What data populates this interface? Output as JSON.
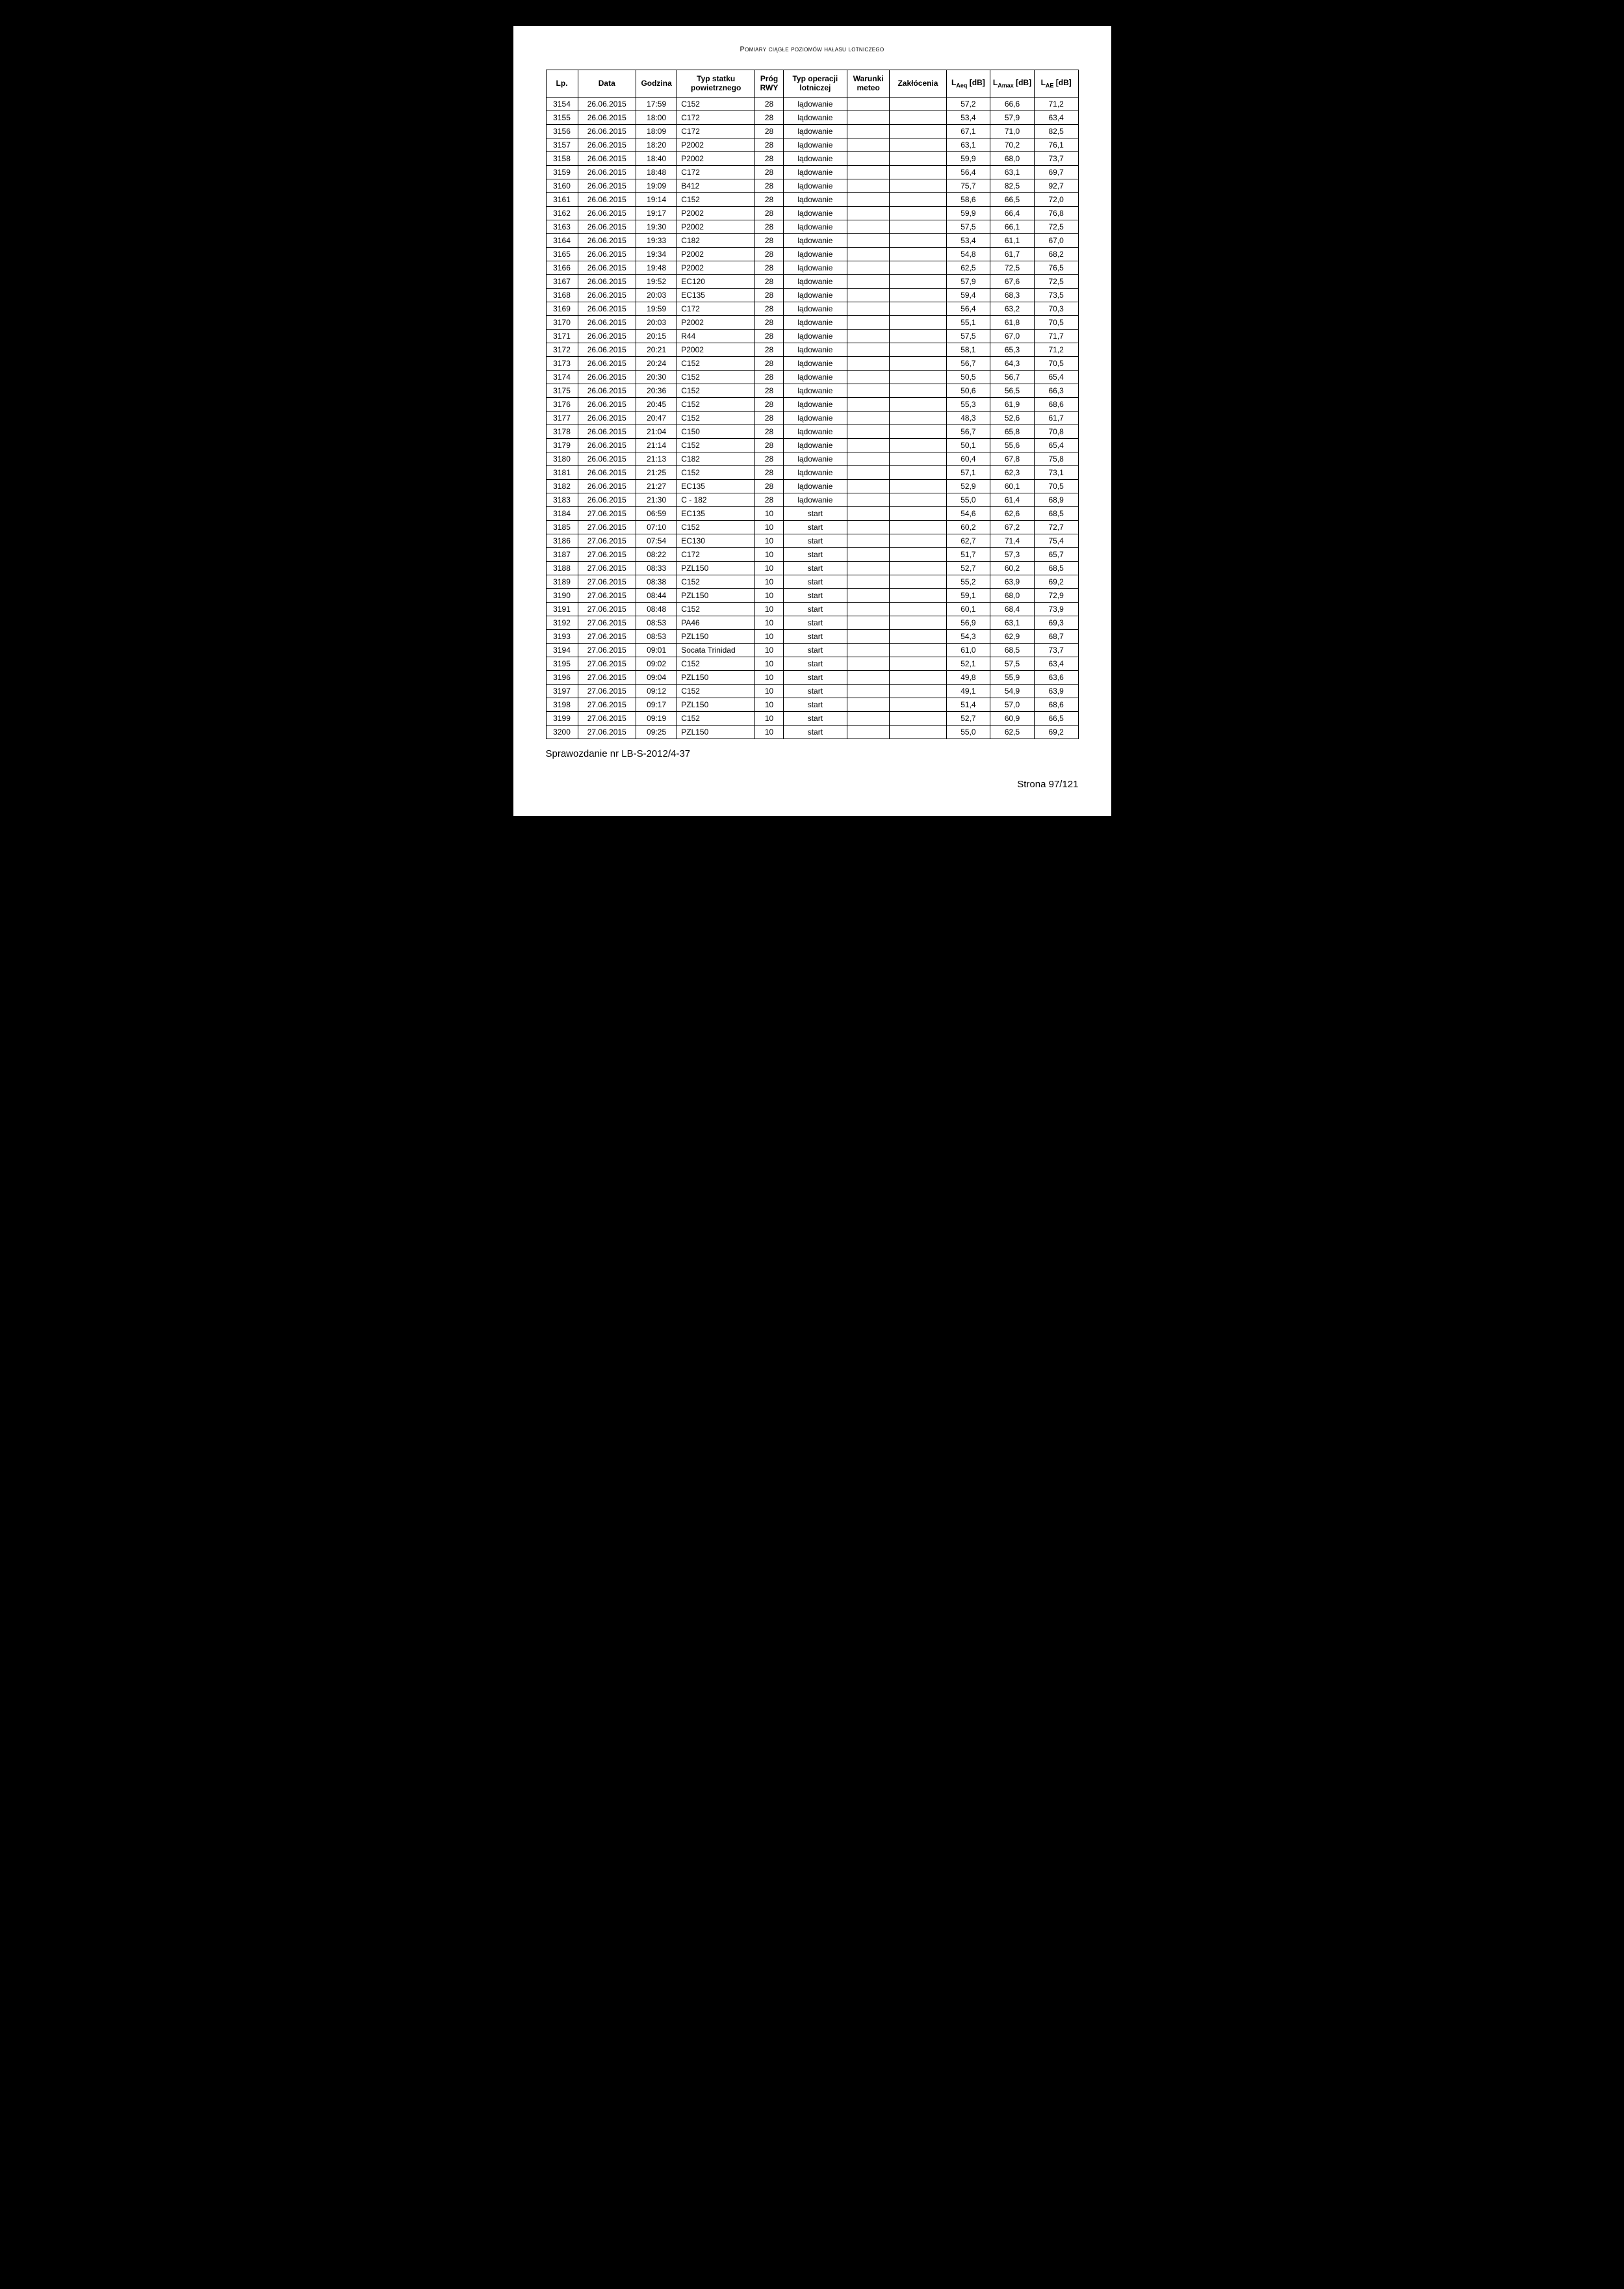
{
  "header_title": "Pomiary ciągłe poziomów hałasu lotniczego",
  "columns": [
    "Lp.",
    "Data",
    "Godzina",
    "Typ statku powietrznego",
    "Próg RWY",
    "Typ operacji lotniczej",
    "Warunki meteo",
    "Zakłócenia",
    "L_Aeq [dB]",
    "L_Amax [dB]",
    "L_AE [dB]"
  ],
  "report_id": "Sprawozdanie nr LB-S-2012/4-37",
  "page_number": "Strona 97/121",
  "rows": [
    [
      "3154",
      "26.06.2015",
      "17:59",
      "C152",
      "28",
      "lądowanie",
      "",
      "",
      "57,2",
      "66,6",
      "71,2"
    ],
    [
      "3155",
      "26.06.2015",
      "18:00",
      "C172",
      "28",
      "lądowanie",
      "",
      "",
      "53,4",
      "57,9",
      "63,4"
    ],
    [
      "3156",
      "26.06.2015",
      "18:09",
      "C172",
      "28",
      "lądowanie",
      "",
      "",
      "67,1",
      "71,0",
      "82,5"
    ],
    [
      "3157",
      "26.06.2015",
      "18:20",
      "P2002",
      "28",
      "lądowanie",
      "",
      "",
      "63,1",
      "70,2",
      "76,1"
    ],
    [
      "3158",
      "26.06.2015",
      "18:40",
      "P2002",
      "28",
      "lądowanie",
      "",
      "",
      "59,9",
      "68,0",
      "73,7"
    ],
    [
      "3159",
      "26.06.2015",
      "18:48",
      "C172",
      "28",
      "lądowanie",
      "",
      "",
      "56,4",
      "63,1",
      "69,7"
    ],
    [
      "3160",
      "26.06.2015",
      "19:09",
      "B412",
      "28",
      "lądowanie",
      "",
      "",
      "75,7",
      "82,5",
      "92,7"
    ],
    [
      "3161",
      "26.06.2015",
      "19:14",
      "C152",
      "28",
      "lądowanie",
      "",
      "",
      "58,6",
      "66,5",
      "72,0"
    ],
    [
      "3162",
      "26.06.2015",
      "19:17",
      "P2002",
      "28",
      "lądowanie",
      "",
      "",
      "59,9",
      "66,4",
      "76,8"
    ],
    [
      "3163",
      "26.06.2015",
      "19:30",
      "P2002",
      "28",
      "lądowanie",
      "",
      "",
      "57,5",
      "66,1",
      "72,5"
    ],
    [
      "3164",
      "26.06.2015",
      "19:33",
      "C182",
      "28",
      "lądowanie",
      "",
      "",
      "53,4",
      "61,1",
      "67,0"
    ],
    [
      "3165",
      "26.06.2015",
      "19:34",
      "P2002",
      "28",
      "lądowanie",
      "",
      "",
      "54,8",
      "61,7",
      "68,2"
    ],
    [
      "3166",
      "26.06.2015",
      "19:48",
      "P2002",
      "28",
      "lądowanie",
      "",
      "",
      "62,5",
      "72,5",
      "76,5"
    ],
    [
      "3167",
      "26.06.2015",
      "19:52",
      "EC120",
      "28",
      "lądowanie",
      "",
      "",
      "57,9",
      "67,6",
      "72,5"
    ],
    [
      "3168",
      "26.06.2015",
      "20:03",
      "EC135",
      "28",
      "lądowanie",
      "",
      "",
      "59,4",
      "68,3",
      "73,5"
    ],
    [
      "3169",
      "26.06.2015",
      "19:59",
      "C172",
      "28",
      "lądowanie",
      "",
      "",
      "56,4",
      "63,2",
      "70,3"
    ],
    [
      "3170",
      "26.06.2015",
      "20:03",
      "P2002",
      "28",
      "lądowanie",
      "",
      "",
      "55,1",
      "61,8",
      "70,5"
    ],
    [
      "3171",
      "26.06.2015",
      "20:15",
      "R44",
      "28",
      "lądowanie",
      "",
      "",
      "57,5",
      "67,0",
      "71,7"
    ],
    [
      "3172",
      "26.06.2015",
      "20:21",
      "P2002",
      "28",
      "lądowanie",
      "",
      "",
      "58,1",
      "65,3",
      "71,2"
    ],
    [
      "3173",
      "26.06.2015",
      "20:24",
      "C152",
      "28",
      "lądowanie",
      "",
      "",
      "56,7",
      "64,3",
      "70,5"
    ],
    [
      "3174",
      "26.06.2015",
      "20:30",
      "C152",
      "28",
      "lądowanie",
      "",
      "",
      "50,5",
      "56,7",
      "65,4"
    ],
    [
      "3175",
      "26.06.2015",
      "20:36",
      "C152",
      "28",
      "lądowanie",
      "",
      "",
      "50,6",
      "56,5",
      "66,3"
    ],
    [
      "3176",
      "26.06.2015",
      "20:45",
      "C152",
      "28",
      "lądowanie",
      "",
      "",
      "55,3",
      "61,9",
      "68,6"
    ],
    [
      "3177",
      "26.06.2015",
      "20:47",
      "C152",
      "28",
      "lądowanie",
      "",
      "",
      "48,3",
      "52,6",
      "61,7"
    ],
    [
      "3178",
      "26.06.2015",
      "21:04",
      "C150",
      "28",
      "lądowanie",
      "",
      "",
      "56,7",
      "65,8",
      "70,8"
    ],
    [
      "3179",
      "26.06.2015",
      "21:14",
      "C152",
      "28",
      "lądowanie",
      "",
      "",
      "50,1",
      "55,6",
      "65,4"
    ],
    [
      "3180",
      "26.06.2015",
      "21:13",
      "C182",
      "28",
      "lądowanie",
      "",
      "",
      "60,4",
      "67,8",
      "75,8"
    ],
    [
      "3181",
      "26.06.2015",
      "21:25",
      "C152",
      "28",
      "lądowanie",
      "",
      "",
      "57,1",
      "62,3",
      "73,1"
    ],
    [
      "3182",
      "26.06.2015",
      "21:27",
      "EC135",
      "28",
      "lądowanie",
      "",
      "",
      "52,9",
      "60,1",
      "70,5"
    ],
    [
      "3183",
      "26.06.2015",
      "21:30",
      "C - 182",
      "28",
      "lądowanie",
      "",
      "",
      "55,0",
      "61,4",
      "68,9"
    ],
    [
      "3184",
      "27.06.2015",
      "06:59",
      "EC135",
      "10",
      "start",
      "",
      "",
      "54,6",
      "62,6",
      "68,5"
    ],
    [
      "3185",
      "27.06.2015",
      "07:10",
      "C152",
      "10",
      "start",
      "",
      "",
      "60,2",
      "67,2",
      "72,7"
    ],
    [
      "3186",
      "27.06.2015",
      "07:54",
      "EC130",
      "10",
      "start",
      "",
      "",
      "62,7",
      "71,4",
      "75,4"
    ],
    [
      "3187",
      "27.06.2015",
      "08:22",
      "C172",
      "10",
      "start",
      "",
      "",
      "51,7",
      "57,3",
      "65,7"
    ],
    [
      "3188",
      "27.06.2015",
      "08:33",
      "PZL150",
      "10",
      "start",
      "",
      "",
      "52,7",
      "60,2",
      "68,5"
    ],
    [
      "3189",
      "27.06.2015",
      "08:38",
      "C152",
      "10",
      "start",
      "",
      "",
      "55,2",
      "63,9",
      "69,2"
    ],
    [
      "3190",
      "27.06.2015",
      "08:44",
      "PZL150",
      "10",
      "start",
      "",
      "",
      "59,1",
      "68,0",
      "72,9"
    ],
    [
      "3191",
      "27.06.2015",
      "08:48",
      "C152",
      "10",
      "start",
      "",
      "",
      "60,1",
      "68,4",
      "73,9"
    ],
    [
      "3192",
      "27.06.2015",
      "08:53",
      "PA46",
      "10",
      "start",
      "",
      "",
      "56,9",
      "63,1",
      "69,3"
    ],
    [
      "3193",
      "27.06.2015",
      "08:53",
      "PZL150",
      "10",
      "start",
      "",
      "",
      "54,3",
      "62,9",
      "68,7"
    ],
    [
      "3194",
      "27.06.2015",
      "09:01",
      "Socata Trinidad",
      "10",
      "start",
      "",
      "",
      "61,0",
      "68,5",
      "73,7"
    ],
    [
      "3195",
      "27.06.2015",
      "09:02",
      "C152",
      "10",
      "start",
      "",
      "",
      "52,1",
      "57,5",
      "63,4"
    ],
    [
      "3196",
      "27.06.2015",
      "09:04",
      "PZL150",
      "10",
      "start",
      "",
      "",
      "49,8",
      "55,9",
      "63,6"
    ],
    [
      "3197",
      "27.06.2015",
      "09:12",
      "C152",
      "10",
      "start",
      "",
      "",
      "49,1",
      "54,9",
      "63,9"
    ],
    [
      "3198",
      "27.06.2015",
      "09:17",
      "PZL150",
      "10",
      "start",
      "",
      "",
      "51,4",
      "57,0",
      "68,6"
    ],
    [
      "3199",
      "27.06.2015",
      "09:19",
      "C152",
      "10",
      "start",
      "",
      "",
      "52,7",
      "60,9",
      "66,5"
    ],
    [
      "3200",
      "27.06.2015",
      "09:25",
      "PZL150",
      "10",
      "start",
      "",
      "",
      "55,0",
      "62,5",
      "69,2"
    ]
  ]
}
